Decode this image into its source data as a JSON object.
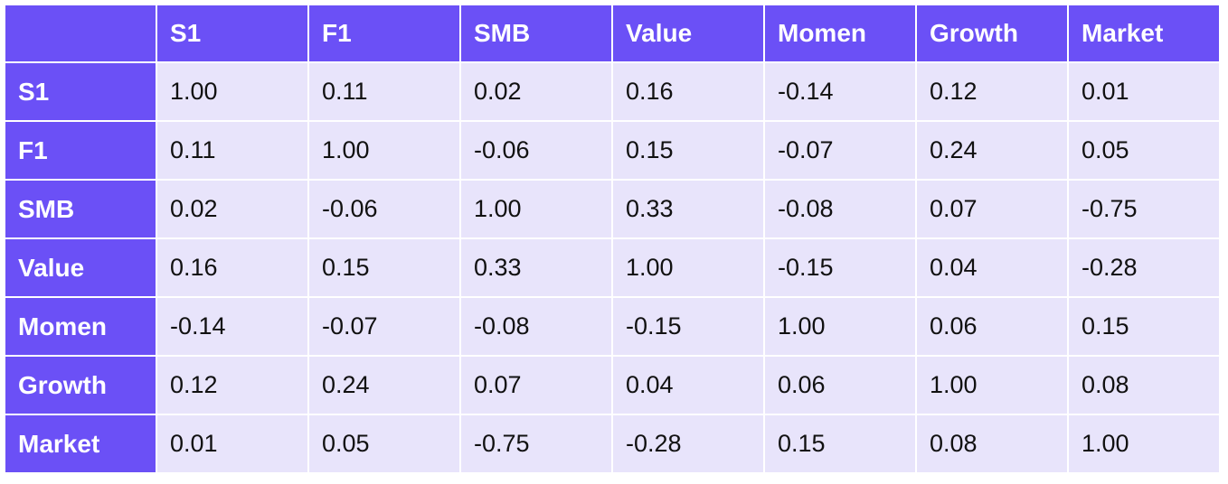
{
  "table": {
    "columns": [
      "S1",
      "F1",
      "SMB",
      "Value",
      "Momen",
      "Growth",
      "Market"
    ],
    "rows": [
      {
        "label": "S1",
        "cells": [
          "1.00",
          "0.11",
          "0.02",
          "0.16",
          "-0.14",
          "0.12",
          "0.01"
        ]
      },
      {
        "label": "F1",
        "cells": [
          "0.11",
          "1.00",
          "-0.06",
          "0.15",
          "-0.07",
          "0.24",
          "0.05"
        ]
      },
      {
        "label": "SMB",
        "cells": [
          "0.02",
          "-0.06",
          "1.00",
          "0.33",
          "-0.08",
          "0.07",
          "-0.75"
        ]
      },
      {
        "label": "Value",
        "cells": [
          "0.16",
          "0.15",
          "0.33",
          "1.00",
          "-0.15",
          "0.04",
          "-0.28"
        ]
      },
      {
        "label": "Momen",
        "cells": [
          "-0.14",
          "-0.07",
          "-0.08",
          "-0.15",
          "1.00",
          "0.06",
          "0.15"
        ]
      },
      {
        "label": "Growth",
        "cells": [
          "0.12",
          "0.24",
          "0.07",
          "0.04",
          "0.06",
          "1.00",
          "0.08"
        ]
      },
      {
        "label": "Market",
        "cells": [
          "0.01",
          "0.05",
          "-0.75",
          "-0.28",
          "0.15",
          "0.08",
          "1.00"
        ]
      }
    ]
  }
}
